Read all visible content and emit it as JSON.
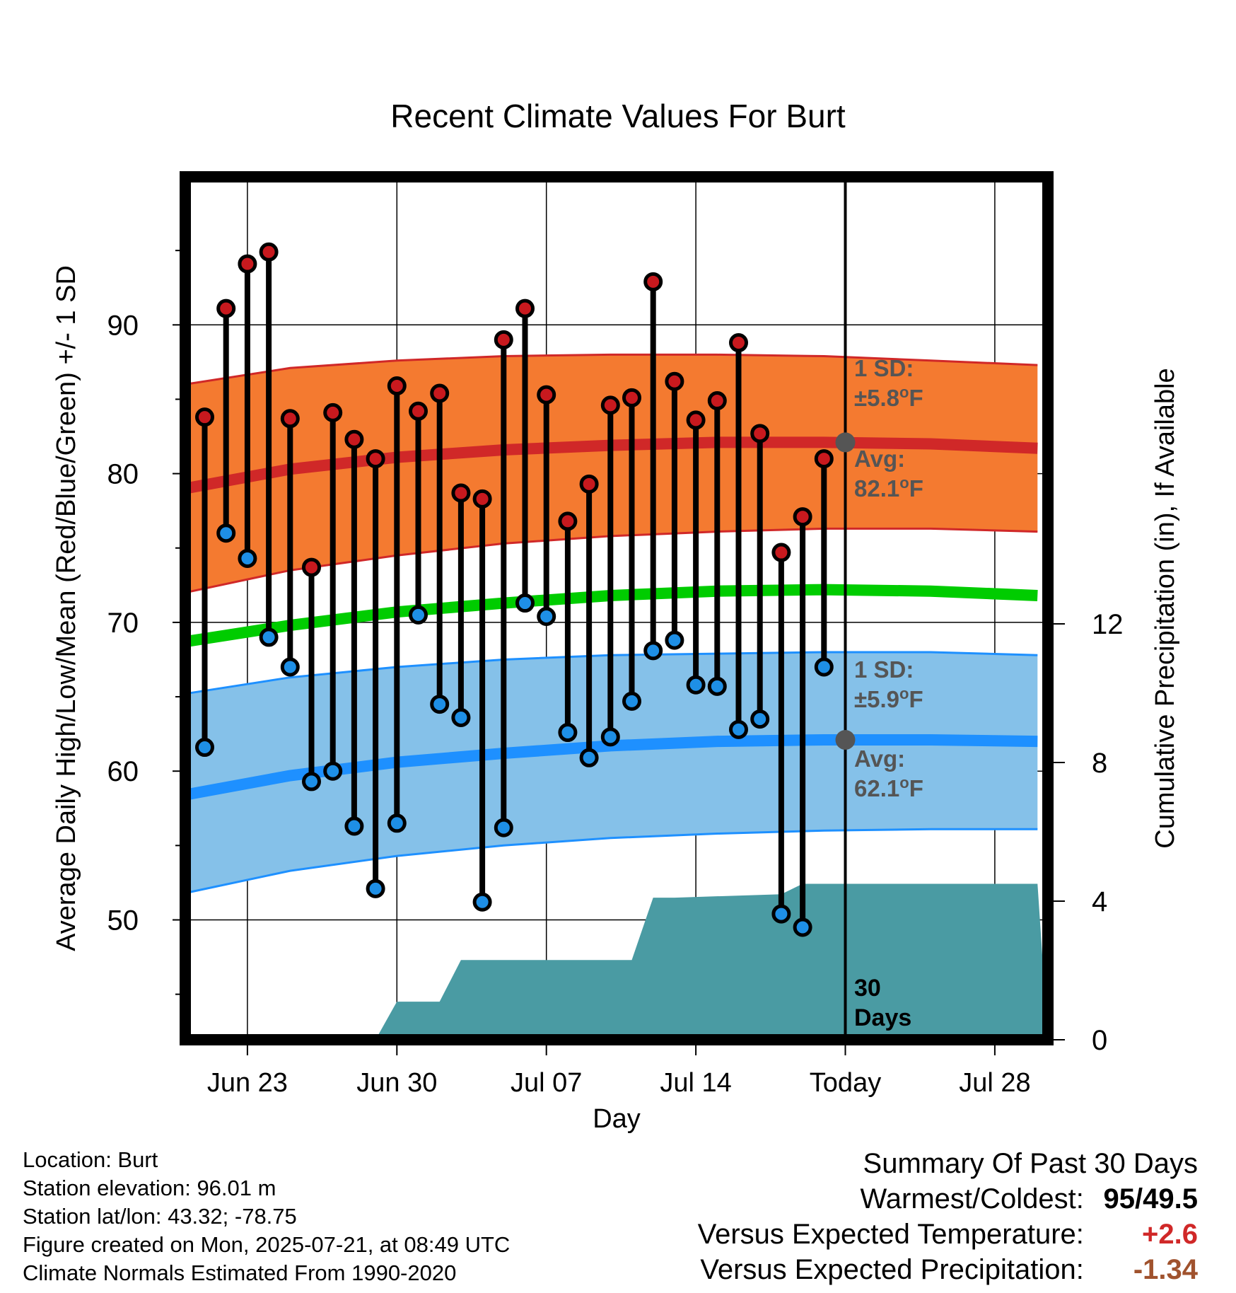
{
  "chart_data": {
    "type": "line",
    "title": "Recent Climate Values For Burt",
    "xlabel": "Day",
    "ylabel": "Average Daily High/Low/Mean (Red/Blue/Green) +/- 1 SD",
    "y2label": "Cumulative Precipitation (in), If Available",
    "ylim": [
      41,
      100
    ],
    "y_ticks": [
      50,
      60,
      70,
      80,
      90
    ],
    "y2lim": [
      0,
      30
    ],
    "y2_ticks": [
      0,
      4,
      8,
      12
    ],
    "x_ticks": [
      {
        "day": 3,
        "label": "Jun 23"
      },
      {
        "day": 10,
        "label": "Jun 30"
      },
      {
        "day": 17,
        "label": "Jul 07"
      },
      {
        "day": 24,
        "label": "Jul 14"
      },
      {
        "day": 31,
        "label": "Today"
      },
      {
        "day": 38,
        "label": "Jul 28"
      }
    ],
    "grid": true,
    "days": [
      1,
      2,
      3,
      4,
      5,
      6,
      7,
      8,
      9,
      10,
      11,
      12,
      13,
      14,
      15,
      16,
      17,
      18,
      19,
      20,
      21,
      22,
      23,
      24,
      25,
      26,
      27,
      28,
      29,
      30
    ],
    "highs": [
      83.8,
      91.1,
      94.1,
      94.9,
      83.7,
      73.7,
      84.1,
      82.3,
      81.0,
      85.9,
      84.2,
      85.4,
      78.7,
      78.3,
      89.0,
      91.1,
      85.3,
      76.8,
      79.3,
      84.6,
      85.1,
      92.9,
      86.2,
      83.6,
      84.9,
      88.8,
      82.7,
      74.7,
      77.1,
      81.0
    ],
    "lows": [
      61.6,
      76.0,
      74.3,
      69.0,
      67.0,
      59.3,
      60.0,
      56.3,
      52.1,
      56.5,
      70.5,
      64.5,
      63.6,
      51.2,
      56.2,
      71.3,
      70.4,
      62.6,
      60.9,
      62.3,
      64.7,
      68.1,
      68.8,
      65.8,
      65.7,
      62.8,
      63.5,
      50.4,
      49.5,
      67.0
    ],
    "normals": {
      "days": [
        0,
        5,
        10,
        15,
        20,
        25,
        30,
        35,
        40
      ],
      "high_mean": [
        79.0,
        80.3,
        81.1,
        81.6,
        81.9,
        82.1,
        82.1,
        82.0,
        81.7
      ],
      "high_upper": [
        86.0,
        87.1,
        87.6,
        87.9,
        88.0,
        88.0,
        87.9,
        87.6,
        87.3
      ],
      "high_lower": [
        72.0,
        73.5,
        74.5,
        75.3,
        75.8,
        76.1,
        76.3,
        76.3,
        76.1
      ],
      "mean": [
        68.7,
        69.8,
        70.7,
        71.3,
        71.8,
        72.1,
        72.2,
        72.1,
        71.8
      ],
      "low_mean": [
        58.4,
        59.7,
        60.6,
        61.2,
        61.7,
        62.0,
        62.1,
        62.1,
        62.0
      ],
      "low_upper": [
        65.2,
        66.3,
        67.0,
        67.5,
        67.8,
        67.9,
        68.0,
        68.0,
        67.8
      ],
      "low_lower": [
        51.8,
        53.3,
        54.3,
        55.0,
        55.5,
        55.8,
        56.0,
        56.1,
        56.1
      ]
    },
    "precip_cumulative": {
      "days": [
        9,
        10,
        11,
        12,
        13,
        21,
        22,
        23,
        28,
        29,
        40
      ],
      "values": [
        0,
        1.1,
        1.1,
        1.1,
        2.3,
        2.3,
        4.1,
        4.1,
        4.2,
        4.5,
        4.5
      ]
    },
    "annotations": {
      "today_label": "Today",
      "high_sd": "1 SD:",
      "high_sd_value": "±5.8",
      "high_avg": "Avg:",
      "high_avg_value": "82.1",
      "low_sd": "1 SD:",
      "low_sd_value": "±5.9",
      "low_avg": "Avg:",
      "low_avg_value": "62.1",
      "unit": "F",
      "degree": "o",
      "period_num": "30",
      "period_word": "Days"
    },
    "colors": {
      "high_band": "#f47a30",
      "high_line": "#d02828",
      "low_band": "#85c1e9",
      "low_line": "#1e90ff",
      "mean_line": "#00cc00",
      "precip": "#4a9ba3",
      "high_marker": "#c8191e",
      "low_marker": "#1e8fe6",
      "annotation": "#555555"
    }
  },
  "info": {
    "location": "Location: Burt",
    "elevation": "Station elevation: 96.01 m",
    "latlon": "Station lat/lon: 43.32; -78.75",
    "created": "Figure created on Mon, 2025-07-21, at 08:49 UTC",
    "normals": "Climate Normals Estimated From 1990-2020"
  },
  "summary": {
    "title": "Summary Of Past 30 Days",
    "warmest_label": "Warmest/Coldest:",
    "warmest_value": "95/49.5",
    "temp_label": "Versus Expected Temperature:",
    "temp_value": "+2.6",
    "precip_label": "Versus Expected Precipitation:",
    "precip_value": "-1.34"
  }
}
